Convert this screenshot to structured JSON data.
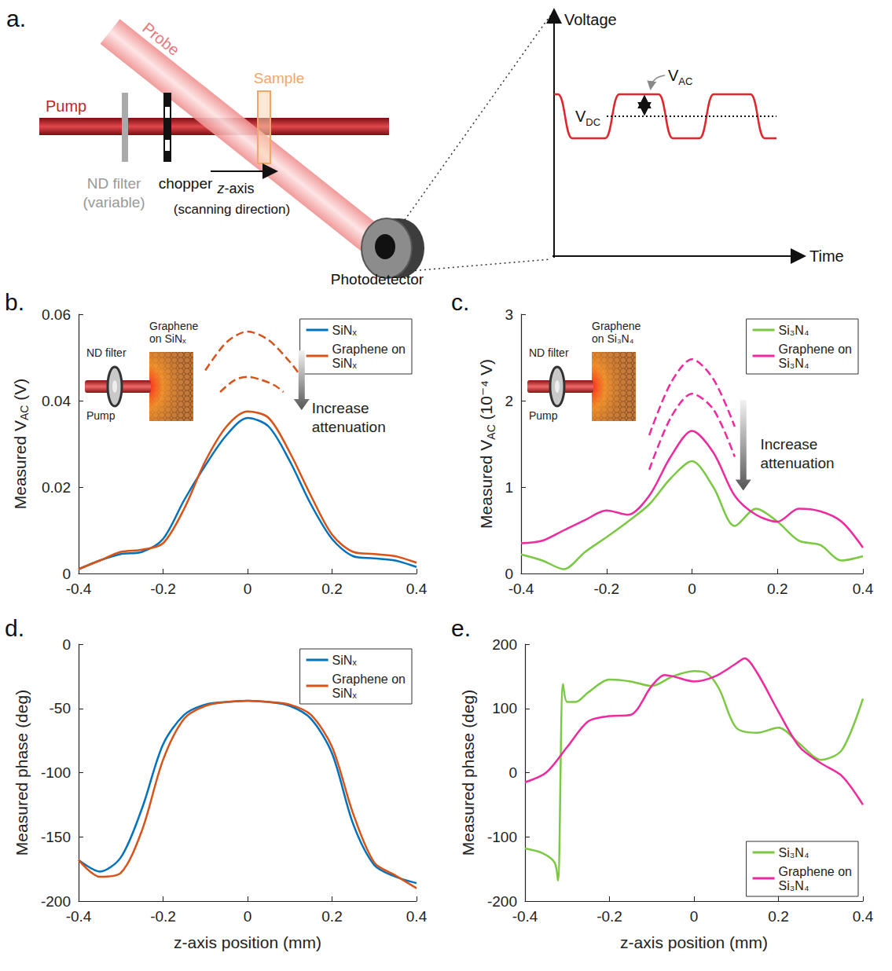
{
  "diagram": {
    "panel": "a.",
    "pump": "Pump",
    "probe": "Probe",
    "sample": "Sample",
    "nd_filter": [
      "ND filter",
      "(variable)"
    ],
    "chopper": "chopper",
    "scan_axis": [
      "z-axis",
      "(scanning direction)"
    ],
    "photodetector": "Photodetector",
    "signal": {
      "y_label": "Voltage",
      "x_label": "Time",
      "ac": {
        "text": "V",
        "sub": "AC"
      },
      "dc": {
        "text": "V",
        "sub": "DC"
      }
    }
  },
  "chart_data": [
    {
      "panel": "b.",
      "type": "line",
      "ylabel": {
        "text": "Measured V",
        "sub": "AC",
        "after": " (V)"
      },
      "xlim": [
        -0.4,
        0.4
      ],
      "xticks": [
        -0.4,
        -0.2,
        0,
        0.2,
        0.4
      ],
      "ylim": [
        0,
        0.06
      ],
      "yticks": [
        0,
        0.02,
        0.04,
        0.06
      ],
      "grid": false,
      "legend": "upper right",
      "inset": {
        "sample": "Graphene on SiNₓ",
        "filter": "ND filter",
        "beam": "Pump"
      },
      "annotation": "Increase attenuation",
      "series": [
        {
          "name": "SiNₓ",
          "color": "#0072BD",
          "line_style": "solid",
          "x": [
            -0.4,
            -0.35,
            -0.3,
            -0.25,
            -0.2,
            -0.15,
            -0.1,
            -0.05,
            0,
            0.05,
            0.1,
            0.15,
            0.2,
            0.25,
            0.3,
            0.35,
            0.4
          ],
          "values": [
            0.001,
            0.003,
            0.0045,
            0.005,
            0.008,
            0.017,
            0.025,
            0.032,
            0.036,
            0.034,
            0.026,
            0.016,
            0.008,
            0.004,
            0.0035,
            0.003,
            0.0015
          ]
        },
        {
          "name": "Graphene on SiNₓ",
          "color": "#D95319",
          "line_style": "solid",
          "x": [
            -0.4,
            -0.35,
            -0.3,
            -0.25,
            -0.2,
            -0.15,
            -0.1,
            -0.05,
            0,
            0.05,
            0.1,
            0.15,
            0.2,
            0.25,
            0.3,
            0.35,
            0.4
          ],
          "values": [
            0.001,
            0.003,
            0.005,
            0.0055,
            0.007,
            0.015,
            0.026,
            0.034,
            0.0375,
            0.036,
            0.028,
            0.018,
            0.009,
            0.005,
            0.0045,
            0.004,
            0.0025
          ]
        },
        {
          "color": "#D95319",
          "line_style": "dashed",
          "x": [
            -0.1,
            -0.05,
            0,
            0.05,
            0.1,
            0.12
          ],
          "values": [
            0.047,
            0.0535,
            0.056,
            0.054,
            0.049,
            0.0465
          ]
        },
        {
          "color": "#D95319",
          "line_style": "dashed",
          "x": [
            -0.065,
            -0.03,
            0,
            0.03,
            0.065,
            0.085
          ],
          "values": [
            0.042,
            0.0448,
            0.0455,
            0.0449,
            0.0435,
            0.042
          ]
        }
      ]
    },
    {
      "panel": "c.",
      "type": "line",
      "ylabel": {
        "text": "Measured V",
        "sub": "AC",
        "after": " (10⁻⁴ V)"
      },
      "xlim": [
        -0.4,
        0.4
      ],
      "xticks": [
        -0.4,
        -0.2,
        0,
        0.2,
        0.4
      ],
      "ylim": [
        0,
        3
      ],
      "yticks": [
        0,
        1,
        2,
        3
      ],
      "grid": false,
      "legend": "upper right",
      "inset": {
        "sample": "Graphene on Si₃N₄",
        "filter": "ND filter",
        "beam": "Pump"
      },
      "annotation": "Increase attenuation",
      "series": [
        {
          "name": "Si₃N₄",
          "color": "#7BC943",
          "line_style": "solid",
          "x": [
            -0.4,
            -0.35,
            -0.3,
            -0.25,
            -0.2,
            -0.15,
            -0.1,
            -0.05,
            0,
            0.05,
            0.1,
            0.15,
            0.2,
            0.25,
            0.3,
            0.35,
            0.4
          ],
          "values": [
            0.22,
            0.15,
            0.05,
            0.25,
            0.42,
            0.6,
            0.8,
            1.1,
            1.3,
            1.0,
            0.55,
            0.75,
            0.6,
            0.38,
            0.33,
            0.15,
            0.2
          ]
        },
        {
          "name": "Graphene on Si₃N₄",
          "color": "#EE2A9E",
          "line_style": "solid",
          "x": [
            -0.4,
            -0.35,
            -0.3,
            -0.25,
            -0.2,
            -0.15,
            -0.1,
            -0.05,
            0,
            0.05,
            0.1,
            0.15,
            0.2,
            0.25,
            0.3,
            0.35,
            0.4
          ],
          "values": [
            0.35,
            0.38,
            0.5,
            0.62,
            0.73,
            0.68,
            0.9,
            1.35,
            1.65,
            1.4,
            0.9,
            0.68,
            0.6,
            0.75,
            0.72,
            0.6,
            0.3
          ]
        },
        {
          "color": "#EE2A9E",
          "line_style": "dashed",
          "x": [
            -0.1,
            -0.05,
            0,
            0.05,
            0.1
          ],
          "values": [
            1.6,
            2.2,
            2.48,
            2.25,
            1.7
          ]
        },
        {
          "color": "#EE2A9E",
          "line_style": "dashed",
          "x": [
            -0.1,
            -0.05,
            0,
            0.05,
            0.1
          ],
          "values": [
            1.2,
            1.8,
            2.08,
            1.9,
            1.35
          ]
        }
      ]
    },
    {
      "panel": "d.",
      "type": "line",
      "xlabel": "z-axis position (mm)",
      "ylabel": "Measured phase (deg)",
      "xlim": [
        -0.4,
        0.4
      ],
      "xticks": [
        -0.4,
        -0.2,
        0,
        0.2,
        0.4
      ],
      "ylim": [
        -200,
        0
      ],
      "yticks": [
        -200,
        -150,
        -100,
        -50,
        0
      ],
      "grid": false,
      "legend": "upper right",
      "series": [
        {
          "name": "SiNₓ",
          "color": "#0072BD",
          "line_style": "solid",
          "x": [
            -0.4,
            -0.35,
            -0.3,
            -0.25,
            -0.2,
            -0.15,
            -0.1,
            -0.05,
            0,
            0.05,
            0.1,
            0.15,
            0.2,
            0.25,
            0.3,
            0.35,
            0.4
          ],
          "values": [
            -168,
            -177,
            -166,
            -128,
            -78,
            -55,
            -47,
            -45,
            -44,
            -45,
            -48,
            -58,
            -85,
            -140,
            -172,
            -181,
            -186
          ]
        },
        {
          "name": "Graphene on SiNₓ",
          "color": "#D95319",
          "line_style": "solid",
          "x": [
            -0.4,
            -0.35,
            -0.3,
            -0.25,
            -0.2,
            -0.15,
            -0.1,
            -0.05,
            0,
            0.05,
            0.1,
            0.15,
            0.2,
            0.25,
            0.3,
            0.35,
            0.4
          ],
          "values": [
            -168,
            -181,
            -178,
            -145,
            -90,
            -58,
            -48,
            -45,
            -44,
            -45,
            -47,
            -55,
            -80,
            -132,
            -170,
            -180,
            -190
          ]
        }
      ]
    },
    {
      "panel": "e.",
      "type": "line",
      "xlabel": "z-axis position (mm)",
      "ylabel": "Measured phase (deg)",
      "xlim": [
        -0.4,
        0.4
      ],
      "xticks": [
        -0.4,
        -0.2,
        0,
        0.2,
        0.4
      ],
      "ylim": [
        -200,
        200
      ],
      "yticks": [
        -200,
        -100,
        0,
        100,
        200
      ],
      "grid": false,
      "legend": "lower right",
      "series": [
        {
          "name": "Si₃N₄",
          "color": "#7BC943",
          "line_style": "solid",
          "x": [
            -0.4,
            -0.36,
            -0.33,
            -0.322,
            -0.31,
            -0.3,
            -0.28,
            -0.25,
            -0.2,
            -0.15,
            -0.1,
            -0.05,
            0,
            0.03,
            0.06,
            0.1,
            0.15,
            0.2,
            0.25,
            0.3,
            0.35,
            0.4
          ],
          "values": [
            -118,
            -125,
            -140,
            -168,
            138,
            110,
            110,
            125,
            145,
            142,
            135,
            150,
            158,
            155,
            130,
            70,
            62,
            70,
            45,
            20,
            35,
            115
          ]
        },
        {
          "name": "Graphene on Si₃N₄",
          "color": "#EE2A9E",
          "line_style": "solid",
          "x": [
            -0.4,
            -0.35,
            -0.3,
            -0.25,
            -0.2,
            -0.15,
            -0.1,
            -0.07,
            -0.05,
            0,
            0.05,
            0.1,
            0.12,
            0.15,
            0.2,
            0.25,
            0.3,
            0.35,
            0.4
          ],
          "values": [
            -15,
            0,
            40,
            80,
            88,
            90,
            135,
            152,
            150,
            142,
            150,
            170,
            178,
            155,
            95,
            40,
            15,
            -5,
            -50
          ]
        }
      ]
    }
  ]
}
